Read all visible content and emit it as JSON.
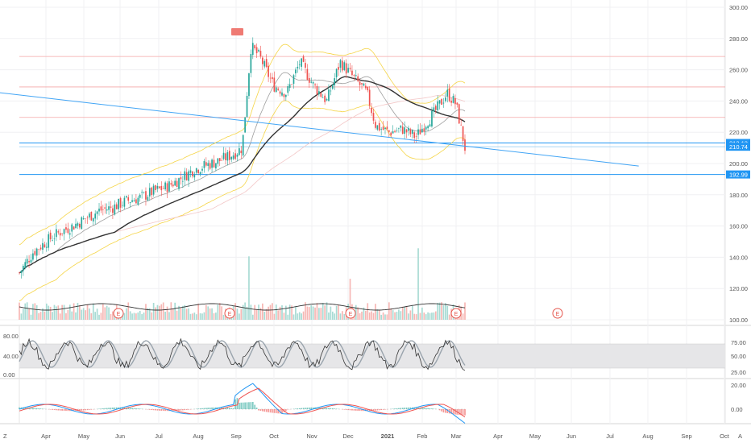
{
  "chart_data": {
    "type": "candlestick",
    "price_axis": {
      "ticks": [
        "300.00",
        "280.00",
        "260.00",
        "240.00",
        "220.00",
        "200.00",
        "180.00",
        "160.00",
        "140.00",
        "120.00",
        "100.00"
      ],
      "tick_values": [
        300,
        280,
        260,
        240,
        220,
        200,
        180,
        160,
        140,
        120,
        100
      ],
      "range": [
        100,
        305
      ]
    },
    "time_axis": {
      "labels": [
        "Apr",
        "May",
        "Jun",
        "Jul",
        "Aug",
        "Sep",
        "Oct",
        "Nov",
        "Dec",
        "2021",
        "Feb",
        "Mar",
        "Apr",
        "May",
        "Jun",
        "Jul",
        "Aug",
        "Sep",
        "Oct"
      ]
    },
    "price_badges": [
      {
        "text": "213.13",
        "value": 213.13,
        "color": "#2196f3"
      },
      {
        "text": "210.74",
        "value": 210.74,
        "color": "#2196f3"
      },
      {
        "text": "192.99",
        "value": 192.99,
        "color": "#2196f3"
      }
    ],
    "horizontal_lines": [
      {
        "value": 268.5,
        "color": "#f4a6a6"
      },
      {
        "value": 249.0,
        "color": "#f4a6a6"
      },
      {
        "value": 229.5,
        "color": "#f4a6a6"
      },
      {
        "value": 213.13,
        "color": "#2196f3"
      },
      {
        "value": 210.74,
        "color": "#9ad0f5"
      },
      {
        "value": 192.99,
        "color": "#2196f3"
      }
    ],
    "trend_line": {
      "start": [
        -0.05,
        245.5
      ],
      "end": [
        1.39,
        198.4
      ]
    },
    "earnings_markers": [
      "E",
      "E",
      "E",
      "E",
      "E"
    ],
    "rsi_axis": {
      "left_ticks": [
        "80.00",
        "40.00",
        "0.00"
      ],
      "right_ticks": [
        "75.00",
        "50.00",
        "25.00"
      ]
    },
    "macd_axis": {
      "right_ticks": [
        "20.00",
        "0.00"
      ]
    },
    "close_series": [
      {
        "t": 0.0,
        "c": 130
      },
      {
        "t": 0.03,
        "c": 143
      },
      {
        "t": 0.06,
        "c": 150
      },
      {
        "t": 0.09,
        "c": 156
      },
      {
        "t": 0.12,
        "c": 160
      },
      {
        "t": 0.15,
        "c": 165
      },
      {
        "t": 0.18,
        "c": 170
      },
      {
        "t": 0.21,
        "c": 172
      },
      {
        "t": 0.24,
        "c": 176
      },
      {
        "t": 0.27,
        "c": 178
      },
      {
        "t": 0.3,
        "c": 182
      },
      {
        "t": 0.33,
        "c": 185
      },
      {
        "t": 0.36,
        "c": 190
      },
      {
        "t": 0.39,
        "c": 196
      },
      {
        "t": 0.42,
        "c": 199
      },
      {
        "t": 0.45,
        "c": 202
      },
      {
        "t": 0.48,
        "c": 206
      },
      {
        "t": 0.5,
        "c": 210
      },
      {
        "t": 0.52,
        "c": 275
      },
      {
        "t": 0.54,
        "c": 268
      },
      {
        "t": 0.57,
        "c": 250
      },
      {
        "t": 0.6,
        "c": 245
      },
      {
        "t": 0.63,
        "c": 265
      },
      {
        "t": 0.66,
        "c": 250
      },
      {
        "t": 0.69,
        "c": 240
      },
      {
        "t": 0.72,
        "c": 265
      },
      {
        "t": 0.75,
        "c": 255
      },
      {
        "t": 0.78,
        "c": 245
      },
      {
        "t": 0.8,
        "c": 224
      },
      {
        "t": 0.83,
        "c": 220
      },
      {
        "t": 0.86,
        "c": 222
      },
      {
        "t": 0.89,
        "c": 217
      },
      {
        "t": 0.91,
        "c": 225
      },
      {
        "t": 0.93,
        "c": 232
      },
      {
        "t": 0.96,
        "c": 245
      },
      {
        "t": 0.98,
        "c": 238
      },
      {
        "t": 1.0,
        "c": 210
      }
    ]
  }
}
